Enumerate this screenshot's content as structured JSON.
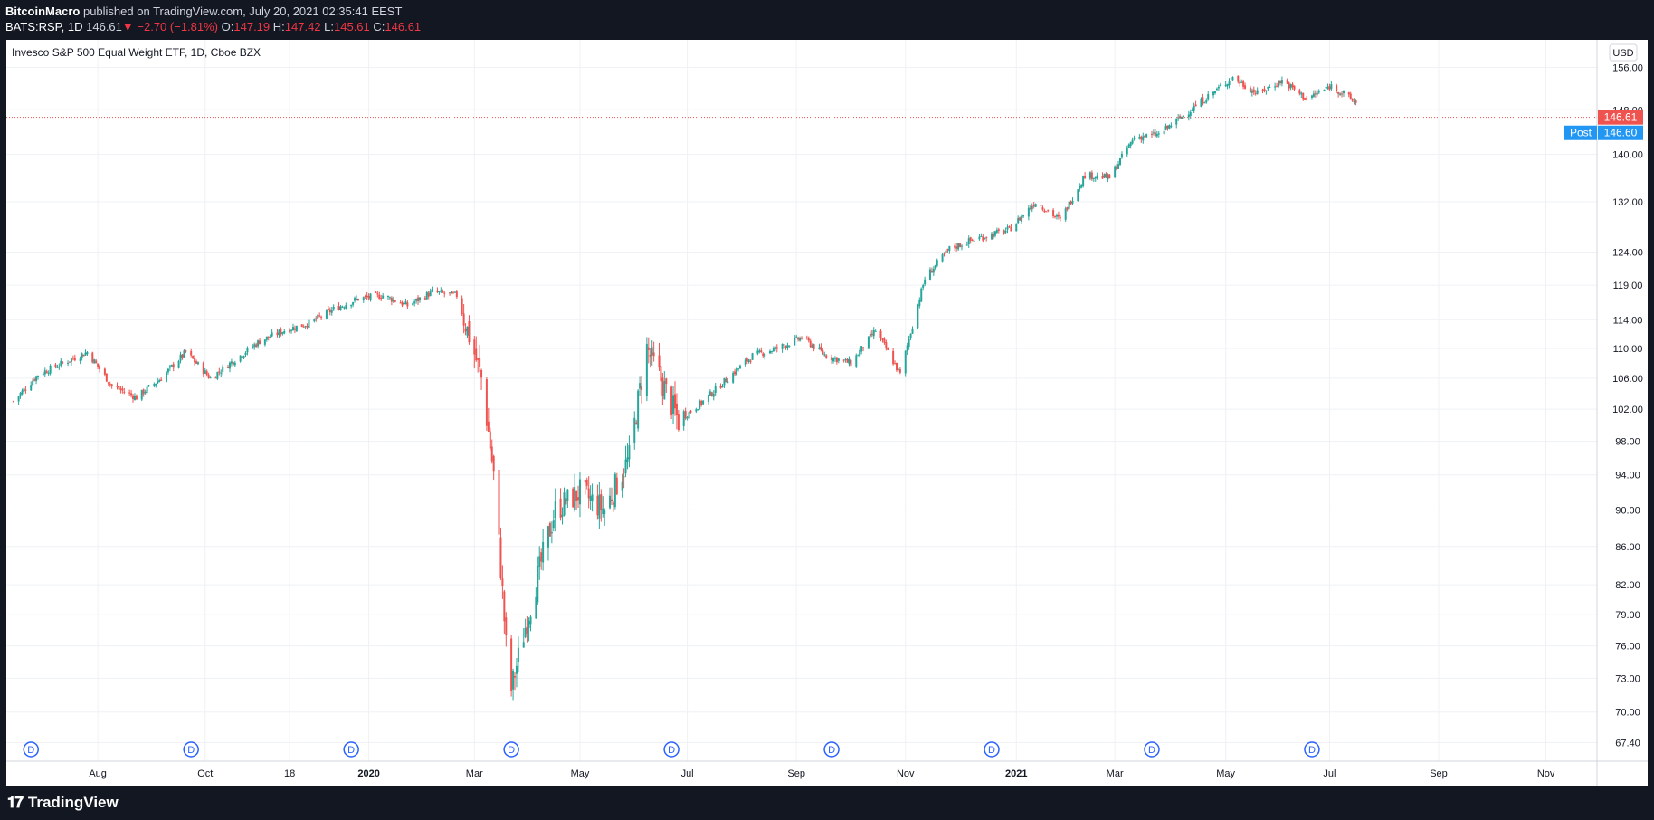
{
  "header": {
    "author": "BitcoinMacro",
    "published_text": "published on TradingView.com, July 20, 2021 02:35:41 EEST",
    "symbol": "BATS:RSP, 1D",
    "last": "146.61",
    "change": "−2.70 (−1.81%)",
    "o_label": "O:",
    "o": "147.19",
    "h_label": "H:",
    "h": "147.42",
    "l_label": "L:",
    "l": "145.61",
    "c_label": "C:",
    "c": "146.61"
  },
  "legend_title": "Invesco S&P 500 Equal Weight ETF, 1D, Cboe BZX",
  "currency": "USD",
  "price_label": "146.61",
  "post_label": "Post",
  "post_price": "146.60",
  "dividend_marker": "D",
  "footer": {
    "brand": "TradingView"
  },
  "colors": {
    "up": "#26a69a",
    "down": "#ef5350",
    "post": "#2196f3",
    "grid": "#eef1f5",
    "bg": "#ffffff",
    "dark": "#131722"
  },
  "chart_data": {
    "type": "candlestick",
    "symbol": "BATS:RSP",
    "timeframe": "1D",
    "scale": "log",
    "grid": true,
    "ylim": [
      66,
      160
    ],
    "y_ticks": [
      "67.40",
      "70.00",
      "73.00",
      "76.00",
      "79.00",
      "82.00",
      "86.00",
      "90.00",
      "94.00",
      "98.00",
      "102.00",
      "106.00",
      "110.00",
      "114.00",
      "119.00",
      "124.00",
      "132.00",
      "140.00",
      "148.00",
      "156.00"
    ],
    "x_ticks": [
      "Aug",
      "Oct",
      "18",
      "2020",
      "Mar",
      "May",
      "Jul",
      "Sep",
      "Nov",
      "2021",
      "Mar",
      "May",
      "Jul",
      "Sep",
      "Nov"
    ],
    "dividend_markers": 9,
    "last_price": 146.61,
    "post_price": 146.6,
    "series": [
      {
        "date": "2019-06-14",
        "close": 103.0
      },
      {
        "date": "2019-06-28",
        "close": 106.5
      },
      {
        "date": "2019-07-12",
        "close": 108.0
      },
      {
        "date": "2019-07-26",
        "close": 109.5
      },
      {
        "date": "2019-08-09",
        "close": 105.0
      },
      {
        "date": "2019-08-23",
        "close": 103.5
      },
      {
        "date": "2019-09-06",
        "close": 106.0
      },
      {
        "date": "2019-09-20",
        "close": 109.5
      },
      {
        "date": "2019-10-04",
        "close": 106.0
      },
      {
        "date": "2019-10-18",
        "close": 108.5
      },
      {
        "date": "2019-11-01",
        "close": 111.0
      },
      {
        "date": "2019-11-15",
        "close": 112.5
      },
      {
        "date": "2019-11-29",
        "close": 113.5
      },
      {
        "date": "2019-12-13",
        "close": 115.5
      },
      {
        "date": "2019-12-27",
        "close": 117.0
      },
      {
        "date": "2020-01-10",
        "close": 117.5
      },
      {
        "date": "2020-01-24",
        "close": 116.0
      },
      {
        "date": "2020-02-07",
        "close": 118.0
      },
      {
        "date": "2020-02-21",
        "close": 117.5
      },
      {
        "date": "2020-03-06",
        "close": 106.0
      },
      {
        "date": "2020-03-13",
        "close": 94.0
      },
      {
        "date": "2020-03-20",
        "close": 76.0
      },
      {
        "date": "2020-03-23",
        "close": 72.0
      },
      {
        "date": "2020-04-03",
        "close": 80.0
      },
      {
        "date": "2020-04-17",
        "close": 90.0
      },
      {
        "date": "2020-05-01",
        "close": 92.0
      },
      {
        "date": "2020-05-15",
        "close": 90.0
      },
      {
        "date": "2020-05-29",
        "close": 96.0
      },
      {
        "date": "2020-06-08",
        "close": 110.0
      },
      {
        "date": "2020-06-26",
        "close": 100.5
      },
      {
        "date": "2020-07-10",
        "close": 103.0
      },
      {
        "date": "2020-07-24",
        "close": 106.0
      },
      {
        "date": "2020-08-07",
        "close": 109.0
      },
      {
        "date": "2020-08-21",
        "close": 110.0
      },
      {
        "date": "2020-09-04",
        "close": 111.5
      },
      {
        "date": "2020-09-18",
        "close": 109.0
      },
      {
        "date": "2020-10-02",
        "close": 108.0
      },
      {
        "date": "2020-10-16",
        "close": 112.5
      },
      {
        "date": "2020-10-30",
        "close": 106.5
      },
      {
        "date": "2020-11-13",
        "close": 120.0
      },
      {
        "date": "2020-11-27",
        "close": 124.5
      },
      {
        "date": "2020-12-11",
        "close": 126.0
      },
      {
        "date": "2020-12-31",
        "close": 127.5
      },
      {
        "date": "2021-01-15",
        "close": 132.0
      },
      {
        "date": "2021-01-29",
        "close": 129.0
      },
      {
        "date": "2021-02-12",
        "close": 136.5
      },
      {
        "date": "2021-02-26",
        "close": 136.0
      },
      {
        "date": "2021-03-12",
        "close": 143.0
      },
      {
        "date": "2021-03-26",
        "close": 143.5
      },
      {
        "date": "2021-04-09",
        "close": 147.0
      },
      {
        "date": "2021-04-23",
        "close": 150.5
      },
      {
        "date": "2021-05-07",
        "close": 154.0
      },
      {
        "date": "2021-05-21",
        "close": 151.0
      },
      {
        "date": "2021-06-04",
        "close": 153.5
      },
      {
        "date": "2021-06-18",
        "close": 150.0
      },
      {
        "date": "2021-07-02",
        "close": 152.5
      },
      {
        "date": "2021-07-16",
        "close": 149.3
      },
      {
        "date": "2021-07-19",
        "close": 146.61
      }
    ]
  }
}
